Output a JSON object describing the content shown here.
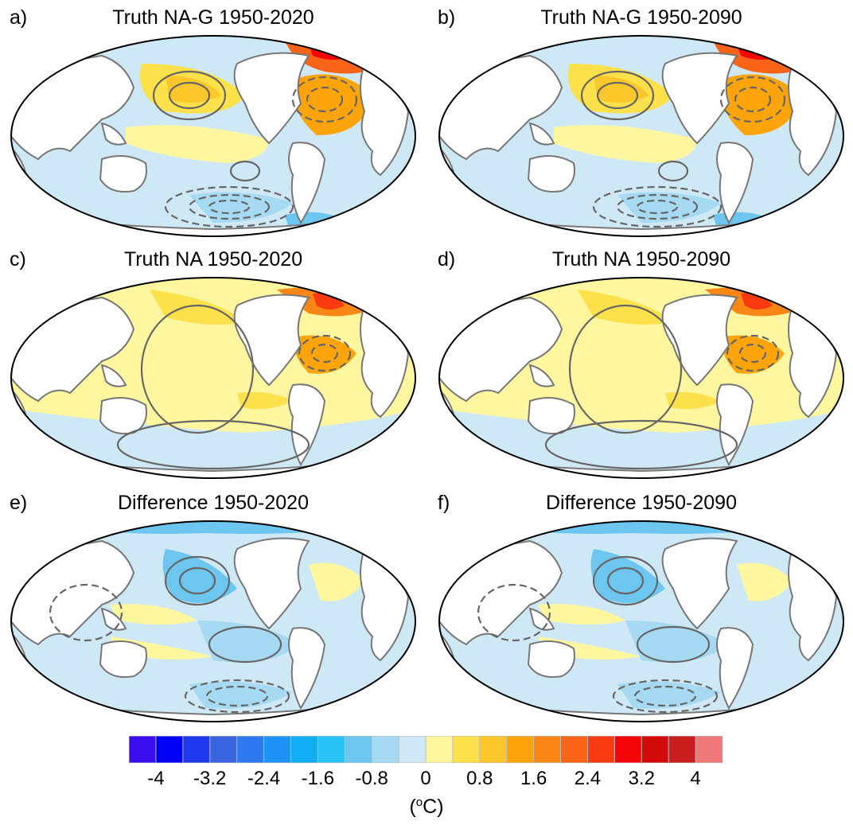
{
  "panels": [
    {
      "label": "a)",
      "title": "Truth NA-G 1950-2020",
      "style": "truth-g"
    },
    {
      "label": "b)",
      "title": "Truth NA-G 1950-2090",
      "style": "truth-g"
    },
    {
      "label": "c)",
      "title": "Truth NA 1950-2020",
      "style": "truth"
    },
    {
      "label": "d)",
      "title": "Truth NA 1950-2090",
      "style": "truth"
    },
    {
      "label": "e)",
      "title": "Difference 1950-2020",
      "style": "diff"
    },
    {
      "label": "f)",
      "title": "Difference 1950-2090",
      "style": "diff"
    }
  ],
  "colorbar": {
    "colors": [
      "#3a0ef0",
      "#0000f5",
      "#1e38ee",
      "#3a63e0",
      "#2e78f0",
      "#1f93f5",
      "#12aef5",
      "#2ac3f5",
      "#6dc6ef",
      "#a6d9f2",
      "#cfe8f6",
      "#fff7a0",
      "#fde14a",
      "#fcc72a",
      "#fca40a",
      "#fa8616",
      "#fa6418",
      "#fa3a10",
      "#f50505",
      "#d20a0a",
      "#c81e1e",
      "#f07878"
    ],
    "tick_labels": [
      "-4",
      "-3.2",
      "-2.4",
      "-1.6",
      "-0.8",
      "0",
      "0.8",
      "1.6",
      "2.4",
      "3.2",
      "4"
    ],
    "units_open": "(",
    "units_sup": "o",
    "units_close": "C)"
  }
}
